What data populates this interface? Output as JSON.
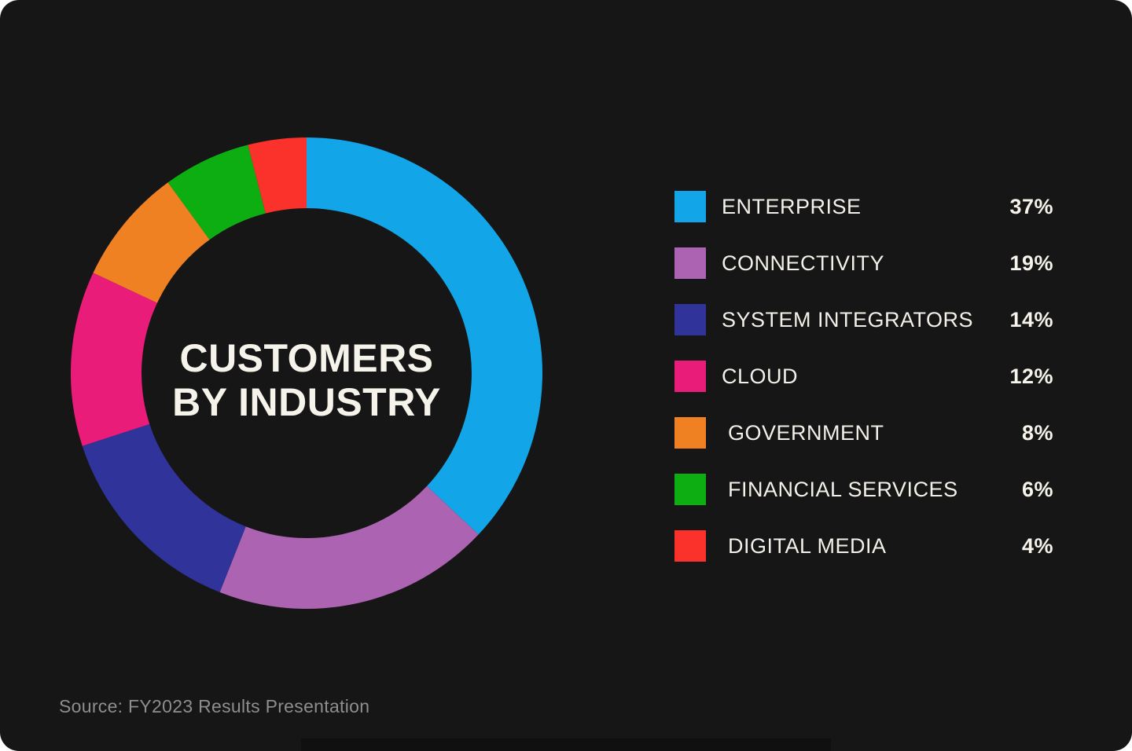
{
  "canvas": {
    "background_color": "#161616",
    "page_background": "#ffffff"
  },
  "chart": {
    "title_line1": "CUSTOMERS",
    "title_line2": "BY INDUSTRY",
    "title_color": "#F6F3EA"
  },
  "chart_data": {
    "type": "pie",
    "subtype": "donut",
    "title": "CUSTOMERS BY INDUSTRY",
    "start_angle_deg": 0,
    "direction": "clockwise",
    "inner_radius_ratio": 0.7,
    "legend_position": "right",
    "value_format": "percent",
    "categories": [
      "ENTERPRISE",
      "CONNECTIVITY",
      "SYSTEM INTEGRATORS",
      "CLOUD",
      "GOVERNMENT",
      "FINANCIAL SERVICES",
      "DIGITAL MEDIA"
    ],
    "values": [
      37,
      19,
      14,
      12,
      8,
      6,
      4
    ],
    "segments": [
      {
        "label": "ENTERPRISE",
        "value": 37,
        "color": "#12A6E8"
      },
      {
        "label": "CONNECTIVITY",
        "value": 19,
        "color": "#AC63B2"
      },
      {
        "label": "SYSTEM INTEGRATORS",
        "value": 14,
        "color": "#30339A"
      },
      {
        "label": "CLOUD",
        "value": 12,
        "color": "#EA1C79"
      },
      {
        "label": "GOVERNMENT",
        "value": 8,
        "color": "#F08122"
      },
      {
        "label": "FINANCIAL SERVICES",
        "value": 6,
        "color": "#0DAE11"
      },
      {
        "label": "DIGITAL MEDIA",
        "value": 4,
        "color": "#FB312B"
      }
    ]
  },
  "legend": {
    "items": [
      {
        "label": "ENTERPRISE",
        "percent": "37%",
        "color": "#12A6E8"
      },
      {
        "label": "CONNECTIVITY",
        "percent": "19%",
        "color": "#AC63B2"
      },
      {
        "label": "SYSTEM INTEGRATORS",
        "percent": "14%",
        "color": "#30339A"
      },
      {
        "label": "CLOUD",
        "percent": "12%",
        "color": "#EA1C79"
      },
      {
        "label": "GOVERNMENT",
        "percent": "8%",
        "color": "#F08122"
      },
      {
        "label": "FINANCIAL SERVICES",
        "percent": "6%",
        "color": "#0DAE11"
      },
      {
        "label": "DIGITAL MEDIA",
        "percent": "4%",
        "color": "#FB312B"
      }
    ]
  },
  "source": {
    "text": "Source: FY2023 Results Presentation",
    "color": "#8F8D8D"
  }
}
